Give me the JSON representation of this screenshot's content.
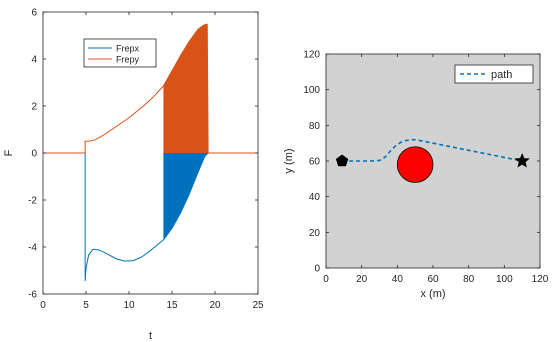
{
  "chart_data": [
    {
      "type": "line",
      "title": "",
      "xlabel": "t",
      "ylabel": "F",
      "xlim": [
        0,
        25
      ],
      "ylim": [
        -6,
        6
      ],
      "xticks": [
        0,
        5,
        10,
        15,
        20,
        25
      ],
      "yticks": [
        -6,
        -4,
        -2,
        0,
        2,
        4,
        6
      ],
      "legend_position": "top-center",
      "grid": false,
      "series": [
        {
          "name": "Frepx",
          "color": "#0072bd",
          "x": [
            0,
            4.9,
            4.9,
            5.0,
            5.3,
            5.8,
            6.5,
            7.5,
            8.5,
            9.5,
            10.5,
            11.5,
            12.5,
            13.5,
            14.0,
            15.0,
            16.0,
            17.0,
            18.0,
            18.8,
            19.2,
            25
          ],
          "y": [
            0,
            0,
            -5.45,
            -4.9,
            -4.35,
            -4.1,
            -4.12,
            -4.3,
            -4.5,
            -4.6,
            -4.58,
            -4.42,
            -4.15,
            -3.85,
            -3.7,
            -3.2,
            -2.55,
            -1.75,
            -0.85,
            -0.15,
            0,
            0
          ]
        },
        {
          "name": "Frepy",
          "color": "#d95319",
          "x": [
            0,
            4.9,
            4.9,
            5.3,
            6.0,
            7.0,
            8.0,
            9.0,
            10.0,
            11.0,
            12.0,
            13.0,
            14.0,
            15.0,
            16.0,
            17.0,
            18.0,
            18.7,
            19.1,
            19.2,
            25
          ],
          "y": [
            0,
            0,
            0.5,
            0.5,
            0.55,
            0.75,
            1.0,
            1.25,
            1.5,
            1.8,
            2.1,
            2.45,
            2.85,
            3.5,
            4.15,
            4.75,
            5.25,
            5.45,
            5.48,
            0,
            0
          ]
        }
      ],
      "shaded_regions": [
        {
          "series": "Frepx",
          "x_from": 14.0,
          "x_to": 19.2,
          "color": "#0072bd"
        },
        {
          "series": "Frepy",
          "x_from": 14.0,
          "x_to": 19.2,
          "color": "#d95319"
        }
      ]
    },
    {
      "type": "scatter",
      "title": "",
      "xlabel": "x (m)",
      "ylabel": "y (m)",
      "xlim": [
        0,
        120
      ],
      "ylim": [
        0,
        120
      ],
      "xticks": [
        0,
        20,
        40,
        60,
        80,
        100,
        120
      ],
      "yticks": [
        0,
        20,
        40,
        60,
        80,
        100,
        120
      ],
      "background": "#d2d2d2",
      "legend_position": "top-right",
      "series": [
        {
          "name": "path",
          "style": "dashed",
          "color": "#0072bd",
          "x": [
            9,
            15,
            20,
            25,
            30,
            33,
            36,
            39,
            42,
            45,
            48,
            51,
            55,
            60,
            65,
            70,
            75,
            80,
            85,
            90,
            95,
            100,
            105,
            110
          ],
          "y": [
            60,
            60,
            60,
            60,
            60.3,
            62,
            65.5,
            68.5,
            70.5,
            71.5,
            72,
            71.8,
            71,
            70,
            69,
            68,
            67,
            66,
            65,
            64,
            63,
            62,
            61,
            60
          ]
        }
      ],
      "markers": [
        {
          "shape": "pentagon",
          "x": 9,
          "y": 60,
          "color": "#000000"
        },
        {
          "shape": "star",
          "x": 110,
          "y": 60,
          "color": "#000000"
        }
      ],
      "obstacles": [
        {
          "shape": "circle",
          "x": 50,
          "y": 58,
          "radius": 10,
          "color": "#ff0000"
        }
      ]
    }
  ]
}
